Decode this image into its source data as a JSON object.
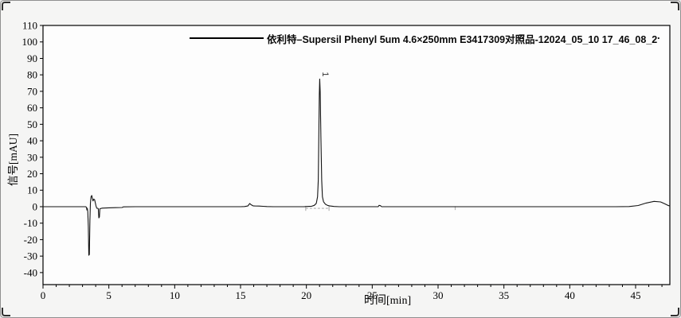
{
  "window": {
    "background": "#f5f5f4",
    "border_color": "#8f8f8f",
    "corner_mark_color": "#2f2f2f"
  },
  "legend": {
    "sample_line_color": "#000000",
    "label": "依利特–Supersil Phenyl 5um 4.6×250mm E3417309对照品-12024_05_10 17_46_08_2",
    "trailing_mark": "."
  },
  "chart_data": {
    "type": "line",
    "title": "",
    "xlabel": "时间[min]",
    "ylabel": "信号[mAU]",
    "xlim": [
      0,
      47.6
    ],
    "ylim": [
      -47.3,
      110
    ],
    "x_major_ticks": [
      0,
      5,
      10,
      15,
      20,
      25,
      30,
      35,
      40,
      45
    ],
    "x_minor_tick_step": 1,
    "y_ticks": [
      -40,
      -30,
      -20,
      -10,
      0,
      10,
      20,
      30,
      40,
      50,
      60,
      70,
      80,
      90,
      100,
      110
    ],
    "grid": false,
    "legend_position": "top-center",
    "axis_color": "#000000",
    "plot_background": "#fdfdfd",
    "series": [
      {
        "name": "依利特–Supersil Phenyl 5um 4.6×250mm E3417309对照品-12024_05_10 17_46_08_2",
        "color": "#141414",
        "points": [
          [
            0,
            0
          ],
          [
            0.5,
            0
          ],
          [
            1,
            0
          ],
          [
            1.5,
            0
          ],
          [
            2,
            0
          ],
          [
            2.5,
            0
          ],
          [
            3,
            0
          ],
          [
            3.25,
            0
          ],
          [
            3.3,
            -0.5
          ],
          [
            3.33,
            -2
          ],
          [
            3.36,
            -1
          ],
          [
            3.4,
            -3
          ],
          [
            3.44,
            -12
          ],
          [
            3.48,
            -29.5
          ],
          [
            3.52,
            -29
          ],
          [
            3.56,
            -8
          ],
          [
            3.6,
            2
          ],
          [
            3.65,
            6
          ],
          [
            3.7,
            6.8
          ],
          [
            3.75,
            5
          ],
          [
            3.8,
            3.5
          ],
          [
            3.86,
            4.6
          ],
          [
            3.92,
            4.2
          ],
          [
            3.97,
            2.5
          ],
          [
            4.02,
            0.5
          ],
          [
            4.08,
            -1
          ],
          [
            4.15,
            -1
          ],
          [
            4.2,
            -1.2
          ],
          [
            4.24,
            -6.8
          ],
          [
            4.28,
            -6.3
          ],
          [
            4.32,
            -1.2
          ],
          [
            4.5,
            -0.9
          ],
          [
            5,
            -0.7
          ],
          [
            5.5,
            -0.6
          ],
          [
            6,
            -0.5
          ],
          [
            6.1,
            -0.1
          ],
          [
            7,
            0
          ],
          [
            8,
            0
          ],
          [
            9,
            0
          ],
          [
            10,
            0
          ],
          [
            11,
            0
          ],
          [
            12,
            0
          ],
          [
            13,
            0
          ],
          [
            14,
            0
          ],
          [
            15,
            0
          ],
          [
            15.3,
            0.1
          ],
          [
            15.55,
            0.4
          ],
          [
            15.7,
            1.9
          ],
          [
            15.8,
            1.2
          ],
          [
            15.95,
            0.5
          ],
          [
            16.1,
            0.4
          ],
          [
            16.4,
            0.35
          ],
          [
            16.7,
            0.25
          ],
          [
            17,
            0.1
          ],
          [
            17.5,
            0
          ],
          [
            18,
            0
          ],
          [
            19,
            0
          ],
          [
            19.8,
            0
          ],
          [
            20.1,
            0.15
          ],
          [
            20.4,
            0.3
          ],
          [
            20.6,
            0.8
          ],
          [
            20.75,
            2
          ],
          [
            20.85,
            6
          ],
          [
            20.9,
            16
          ],
          [
            20.94,
            40
          ],
          [
            20.98,
            68
          ],
          [
            21.01,
            77.5
          ],
          [
            21.05,
            70
          ],
          [
            21.1,
            42
          ],
          [
            21.16,
            16
          ],
          [
            21.22,
            6
          ],
          [
            21.3,
            3
          ],
          [
            21.45,
            1.5
          ],
          [
            21.6,
            0.8
          ],
          [
            21.8,
            0.4
          ],
          [
            22.1,
            0.15
          ],
          [
            22.5,
            0
          ],
          [
            23,
            0
          ],
          [
            24,
            0
          ],
          [
            25,
            0
          ],
          [
            25.45,
            0
          ],
          [
            25.52,
            0.8
          ],
          [
            25.62,
            0.6
          ],
          [
            25.72,
            0
          ],
          [
            26.5,
            0
          ],
          [
            28,
            0
          ],
          [
            30,
            0
          ],
          [
            32,
            0
          ],
          [
            34,
            0
          ],
          [
            36,
            0
          ],
          [
            38,
            0
          ],
          [
            40,
            0
          ],
          [
            42,
            0
          ],
          [
            43.5,
            0
          ],
          [
            44.5,
            0.1
          ],
          [
            45.2,
            0.7
          ],
          [
            45.8,
            2.2
          ],
          [
            46.4,
            3.2
          ],
          [
            46.9,
            2.9
          ],
          [
            47.2,
            1.8
          ],
          [
            47.45,
            0.8
          ],
          [
            47.6,
            0.4
          ]
        ]
      }
    ],
    "peaks": [
      {
        "label": "1",
        "time": 21.0,
        "height_mau": 77.5,
        "label_rotation_deg": 90
      }
    ],
    "integration": {
      "color": "#b3b3b3",
      "baseline": {
        "from_time": 19.95,
        "to_time": 21.72,
        "value": -1
      },
      "ticks": [
        {
          "time": 19.95,
          "from": -2.5,
          "to": 0.5
        },
        {
          "time": 21.72,
          "from": -2.5,
          "to": 0.5
        },
        {
          "time": 31.3,
          "from": -2.0,
          "to": 0.3
        }
      ]
    }
  }
}
